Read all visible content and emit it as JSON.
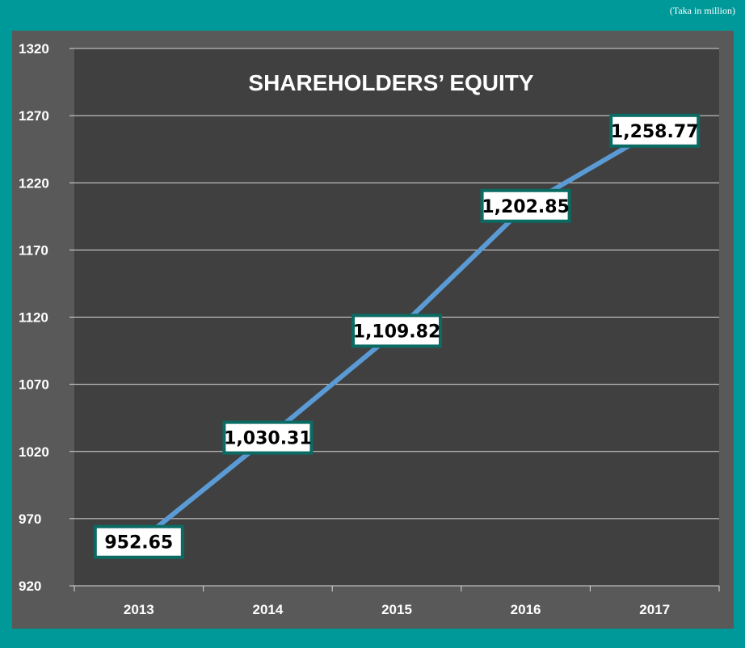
{
  "units_note": "(Taka in million)",
  "chart_data": {
    "type": "line",
    "title": "SHAREHOLDERS’ EQUITY",
    "categories": [
      "2013",
      "2014",
      "2015",
      "2016",
      "2017"
    ],
    "series": [
      {
        "values": [
          952.65,
          1030.31,
          1109.82,
          1202.85,
          1258.77
        ],
        "labels": [
          "952.65",
          "1,030.31",
          "1,109.82",
          "1,202.85",
          "1,258.77"
        ]
      }
    ],
    "ylim": [
      920,
      1320
    ],
    "yticks": [
      920,
      970,
      1020,
      1070,
      1120,
      1170,
      1220,
      1270,
      1320
    ],
    "grid": true,
    "colors": {
      "line": "#5b9bd5",
      "plot_bg": "#404040",
      "frame_bg": "#595959",
      "label_border": "#0b6b63"
    }
  }
}
